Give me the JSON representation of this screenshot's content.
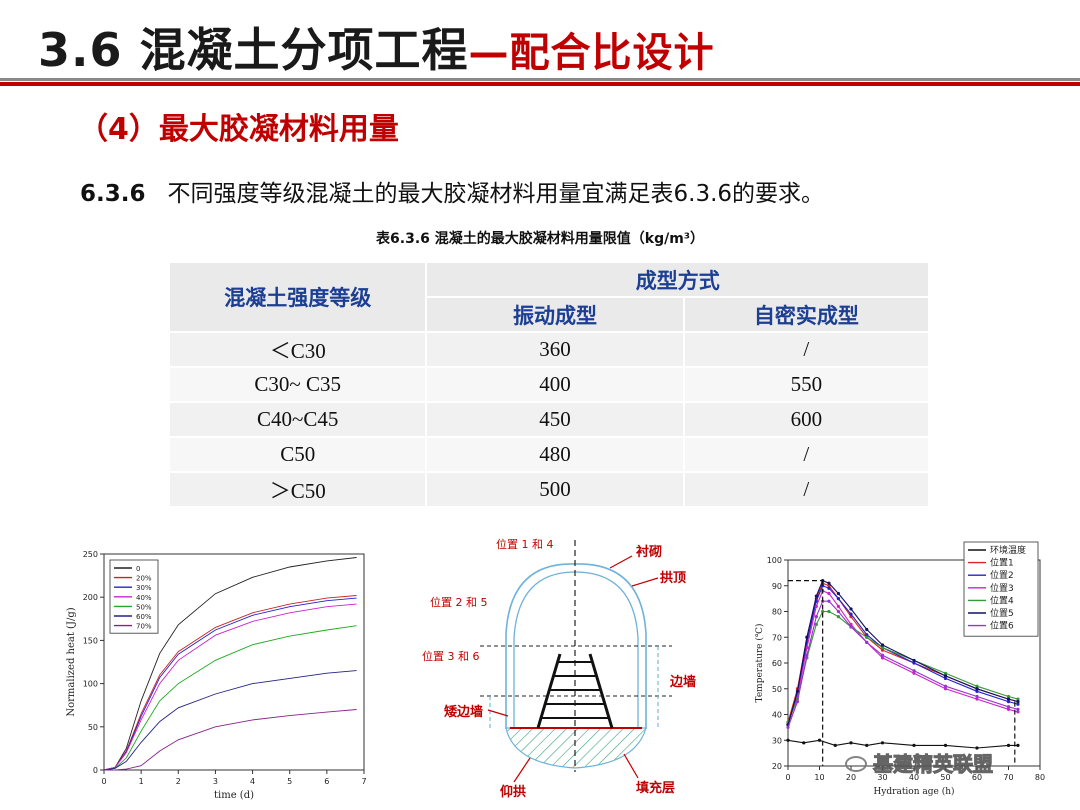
{
  "header": {
    "title_main": "3.6 混凝土分项工程",
    "title_sub": "—配合比设计"
  },
  "section": {
    "heading": "（4）最大胶凝材料用量",
    "clause_number": "6.3.6",
    "clause_text": "不同强度等级混凝土的最大胶凝材料用量宜满足表6.3.6的要求。"
  },
  "table": {
    "caption": "表6.3.6 混凝土的最大胶凝材料用量限值（kg/m³）",
    "header_grade": "混凝土强度等级",
    "header_method": "成型方式",
    "header_vibration": "振动成型",
    "header_self": "自密实成型",
    "rows": [
      {
        "grade": "＜C30",
        "vibration": "360",
        "self": "/"
      },
      {
        "grade": "C30~ C35",
        "vibration": "400",
        "self": "550"
      },
      {
        "grade": "C40~C45",
        "vibration": "450",
        "self": "600"
      },
      {
        "grade": "C50",
        "vibration": "480",
        "self": "/"
      },
      {
        "grade": "＞C50",
        "vibration": "500",
        "self": "/"
      }
    ]
  },
  "chart_data": [
    {
      "type": "line",
      "title": "",
      "xlabel": "time (d)",
      "ylabel": "Normalized heat (J/g)",
      "xlim": [
        0,
        7
      ],
      "ylim": [
        0,
        250
      ],
      "xticks": [
        "0",
        "1",
        "2",
        "3",
        "4",
        "5",
        "6",
        "7"
      ],
      "yticks": [
        "0",
        "50",
        "100",
        "150",
        "200",
        "250"
      ],
      "legend_position": "top-left",
      "series": [
        {
          "name": "0",
          "color": "#222222",
          "x": [
            0,
            0.3,
            0.6,
            1,
            1.5,
            2,
            3,
            4,
            5,
            6,
            6.8
          ],
          "y": [
            0,
            3,
            25,
            80,
            135,
            168,
            204,
            223,
            235,
            242,
            246
          ]
        },
        {
          "name": "20%",
          "color": "#cc2222",
          "x": [
            0,
            0.3,
            0.6,
            1,
            1.5,
            2,
            3,
            4,
            5,
            6,
            6.8
          ],
          "y": [
            0,
            3,
            22,
            65,
            110,
            137,
            165,
            182,
            192,
            199,
            202
          ]
        },
        {
          "name": "30%",
          "color": "#2222cc",
          "x": [
            0,
            0.3,
            0.6,
            1,
            1.5,
            2,
            3,
            4,
            5,
            6,
            6.8
          ],
          "y": [
            0,
            3,
            21,
            62,
            107,
            134,
            162,
            179,
            189,
            196,
            199
          ]
        },
        {
          "name": "40%",
          "color": "#cc22cc",
          "x": [
            0,
            0.3,
            0.6,
            1,
            1.5,
            2,
            3,
            4,
            5,
            6,
            6.8
          ],
          "y": [
            0,
            3,
            20,
            58,
            100,
            127,
            156,
            172,
            182,
            189,
            192
          ]
        },
        {
          "name": "50%",
          "color": "#22aa22",
          "x": [
            0,
            0.3,
            0.6,
            1,
            1.5,
            2,
            3,
            4,
            5,
            6,
            6.8
          ],
          "y": [
            0,
            2,
            14,
            45,
            80,
            100,
            127,
            145,
            155,
            162,
            167
          ]
        },
        {
          "name": "60%",
          "color": "#222288",
          "x": [
            0,
            0.3,
            0.6,
            1,
            1.5,
            2,
            3,
            4,
            5,
            6,
            6.8
          ],
          "y": [
            0,
            2,
            10,
            32,
            56,
            72,
            88,
            100,
            106,
            112,
            115
          ]
        },
        {
          "name": "70%",
          "color": "#882288",
          "x": [
            0,
            0.3,
            0.6,
            1,
            1.5,
            2,
            3,
            4,
            5,
            6,
            6.8
          ],
          "y": [
            0,
            0,
            1,
            5,
            22,
            35,
            50,
            58,
            63,
            67,
            70
          ]
        }
      ]
    },
    {
      "type": "line",
      "title": "",
      "xlabel": "Hydration age (h)",
      "ylabel": "Temperature (℃)",
      "xlim": [
        0,
        80
      ],
      "ylim": [
        20,
        100
      ],
      "xticks": [
        "0",
        "10",
        "20",
        "30",
        "40",
        "50",
        "60",
        "70",
        "80"
      ],
      "yticks": [
        "20",
        "30",
        "40",
        "50",
        "60",
        "70",
        "80",
        "90",
        "100"
      ],
      "legend_position": "top-right",
      "series": [
        {
          "name": "环境温度",
          "color": "#111111",
          "x": [
            0,
            5,
            10,
            15,
            20,
            25,
            30,
            40,
            50,
            60,
            70,
            73
          ],
          "y": [
            30,
            29,
            30,
            28,
            29,
            28,
            29,
            28,
            28,
            27,
            28,
            28
          ]
        },
        {
          "name": "位置1",
          "color": "#dd2222",
          "x": [
            0,
            3,
            6,
            9,
            11,
            13,
            16,
            20,
            25,
            30,
            40,
            50,
            60,
            70,
            73
          ],
          "y": [
            37,
            50,
            70,
            85,
            91,
            90,
            85,
            78,
            70,
            65,
            60,
            55,
            50,
            46,
            45
          ]
        },
        {
          "name": "位置2",
          "color": "#2222cc",
          "x": [
            0,
            3,
            6,
            9,
            11,
            13,
            16,
            20,
            25,
            30,
            40,
            50,
            60,
            70,
            73
          ],
          "y": [
            36,
            48,
            68,
            84,
            90,
            89,
            85,
            79,
            71,
            66,
            60,
            54,
            49,
            45,
            44
          ]
        },
        {
          "name": "位置3",
          "color": "#cc22cc",
          "x": [
            0,
            3,
            6,
            9,
            11,
            13,
            16,
            20,
            25,
            30,
            40,
            50,
            60,
            70,
            73
          ],
          "y": [
            36,
            47,
            66,
            82,
            88,
            87,
            82,
            75,
            68,
            62,
            56,
            50,
            46,
            42,
            41
          ]
        },
        {
          "name": "位置4",
          "color": "#339933",
          "x": [
            0,
            3,
            6,
            9,
            11,
            13,
            16,
            20,
            25,
            30,
            40,
            50,
            60,
            70,
            73
          ],
          "y": [
            37,
            46,
            62,
            75,
            80,
            80,
            78,
            74,
            70,
            66,
            61,
            56,
            51,
            47,
            46
          ]
        },
        {
          "name": "位置5",
          "color": "#111166",
          "x": [
            0,
            3,
            6,
            9,
            11,
            13,
            16,
            20,
            25,
            30,
            40,
            50,
            60,
            70,
            73
          ],
          "y": [
            36,
            49,
            70,
            86,
            92,
            91,
            87,
            81,
            73,
            67,
            61,
            55,
            50,
            46,
            45
          ]
        },
        {
          "name": "位置6",
          "color": "#9933cc",
          "x": [
            0,
            3,
            6,
            9,
            11,
            13,
            16,
            20,
            25,
            30,
            40,
            50,
            60,
            70,
            73
          ],
          "y": [
            35,
            45,
            63,
            78,
            84,
            84,
            80,
            74,
            68,
            63,
            57,
            51,
            47,
            43,
            42
          ]
        }
      ]
    }
  ],
  "tunnel": {
    "label_pos14": "位置 1 和 4",
    "label_pos25": "位置 2 和 5",
    "label_pos36": "位置 3 和 6",
    "label_lining": "衬砌",
    "label_vault": "拱顶",
    "label_sidewall": "边墙",
    "label_short_wall": "矮边墙",
    "label_invert": "仰拱",
    "label_fill": "填充层"
  },
  "watermark": {
    "text": "基建精英联盟"
  }
}
